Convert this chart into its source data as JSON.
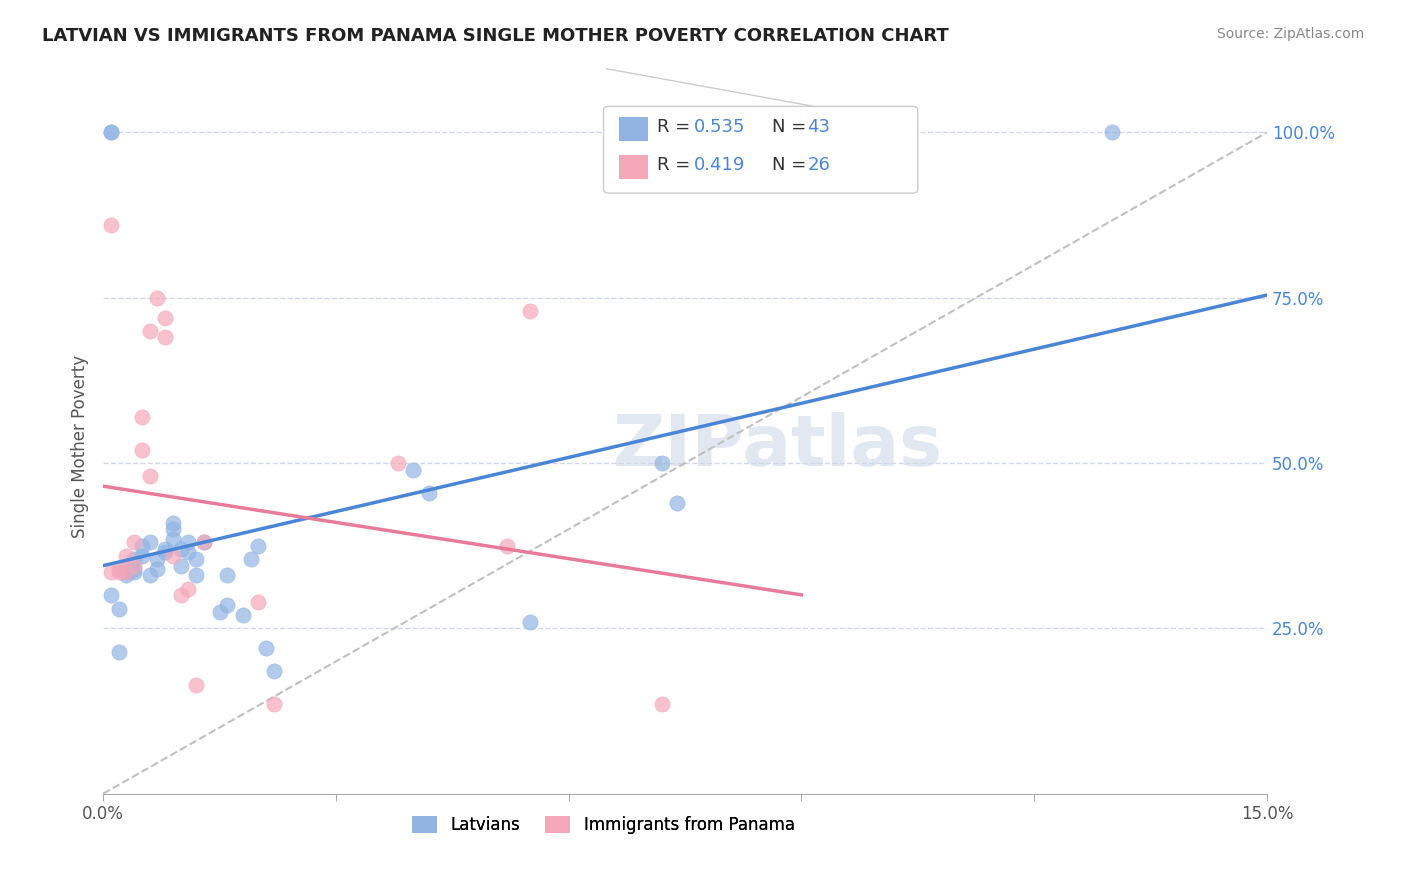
{
  "title": "LATVIAN VS IMMIGRANTS FROM PANAMA SINGLE MOTHER POVERTY CORRELATION CHART",
  "source": "Source: ZipAtlas.com",
  "xlabel_bottom": "",
  "ylabel": "Single Mother Poverty",
  "x_min": 0.0,
  "x_max": 0.15,
  "y_min": 0.0,
  "y_max": 1.05,
  "x_ticks": [
    0.0,
    0.03,
    0.06,
    0.09,
    0.12,
    0.15
  ],
  "x_tick_labels": [
    "0.0%",
    "",
    "",
    "",
    "",
    "15.0%"
  ],
  "y_tick_labels_right": [
    "25.0%",
    "50.0%",
    "75.0%",
    "100.0%"
  ],
  "y_tick_vals_right": [
    0.25,
    0.5,
    0.75,
    1.0
  ],
  "legend_R1": "R = 0.535",
  "legend_N1": "N = 43",
  "legend_R2": "R = 0.419",
  "legend_N2": "N = 26",
  "latvian_color": "#92b4e3",
  "panama_color": "#f4a7b9",
  "line_latvian_color": "#4a86d8",
  "line_panama_color": "#e87a9a",
  "dashed_line_color": "#c0c0c0",
  "watermark": "ZIPatlas",
  "latvians_x": [
    0.001,
    0.002,
    0.002,
    0.003,
    0.003,
    0.003,
    0.004,
    0.004,
    0.004,
    0.005,
    0.005,
    0.006,
    0.006,
    0.007,
    0.007,
    0.008,
    0.008,
    0.009,
    0.009,
    0.009,
    0.01,
    0.01,
    0.011,
    0.011,
    0.012,
    0.012,
    0.013,
    0.015,
    0.016,
    0.016,
    0.018,
    0.019,
    0.02,
    0.021,
    0.022,
    0.04,
    0.042,
    0.055,
    0.072,
    0.074,
    0.001,
    0.001,
    0.13
  ],
  "latvians_y": [
    0.3,
    0.28,
    0.215,
    0.33,
    0.34,
    0.335,
    0.355,
    0.34,
    0.335,
    0.375,
    0.36,
    0.33,
    0.38,
    0.355,
    0.34,
    0.365,
    0.37,
    0.4,
    0.41,
    0.385,
    0.37,
    0.345,
    0.38,
    0.365,
    0.355,
    0.33,
    0.38,
    0.275,
    0.33,
    0.285,
    0.27,
    0.355,
    0.375,
    0.22,
    0.185,
    0.49,
    0.455,
    0.26,
    0.5,
    0.44,
    1.0,
    1.0,
    1.0
  ],
  "panama_x": [
    0.001,
    0.002,
    0.002,
    0.003,
    0.003,
    0.004,
    0.004,
    0.005,
    0.005,
    0.006,
    0.006,
    0.007,
    0.008,
    0.008,
    0.009,
    0.01,
    0.011,
    0.012,
    0.013,
    0.02,
    0.022,
    0.038,
    0.052,
    0.055,
    0.072,
    0.001
  ],
  "panama_y": [
    0.335,
    0.335,
    0.34,
    0.335,
    0.36,
    0.345,
    0.38,
    0.57,
    0.52,
    0.48,
    0.7,
    0.75,
    0.72,
    0.69,
    0.36,
    0.3,
    0.31,
    0.165,
    0.38,
    0.29,
    0.135,
    0.5,
    0.375,
    0.73,
    0.135,
    0.86
  ]
}
